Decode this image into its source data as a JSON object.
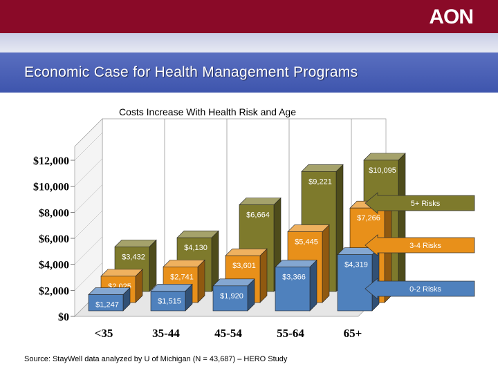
{
  "header": {
    "logo": "AON",
    "title": "Economic Case for Health Management Programs"
  },
  "footer": {
    "source": "Source: StayWell data analyzed by U of Michigan (N = 43,687) – HERO Study"
  },
  "colors": {
    "risk_0_2": "#4f81bd",
    "risk_3_4": "#e8901a",
    "risk_5_plus": "#7e7a2c",
    "accent": "#8a0a28",
    "title_band": "#4a60b4"
  },
  "chart_data": {
    "type": "bar",
    "title": "Costs Increase With Health Risk and Age",
    "categories": [
      "<35",
      "35-44",
      "45-54",
      "55-64",
      "65+"
    ],
    "series": [
      {
        "name": "0-2 Risks",
        "values": [
          1247,
          1515,
          1920,
          3366,
          4319
        ],
        "labels": [
          "$1,247",
          "$1,515",
          "$1,920",
          "$3,366",
          "$4,319"
        ]
      },
      {
        "name": "3-4 Risks",
        "values": [
          2025,
          2741,
          3601,
          5445,
          7266
        ],
        "labels": [
          "$2,025",
          "$2,741",
          "$3,601",
          "$5,445",
          "$7,266"
        ]
      },
      {
        "name": "5+ Risks",
        "values": [
          3432,
          4130,
          6664,
          9221,
          10095
        ],
        "labels": [
          "$3,432",
          "$4,130",
          "$6,664",
          "$9,221",
          "$10,095"
        ]
      }
    ],
    "yticks": [
      "$0",
      "$2,000",
      "$4,000",
      "$6,000",
      "$8,000",
      "$10,000",
      "$12,000"
    ],
    "ytick_values": [
      0,
      2000,
      4000,
      6000,
      8000,
      10000,
      12000
    ],
    "ylim": [
      0,
      12000
    ],
    "legend": [
      "5+ Risks",
      "3-4 Risks",
      "0-2 Risks"
    ],
    "legend_placement": "right",
    "grid": true
  }
}
